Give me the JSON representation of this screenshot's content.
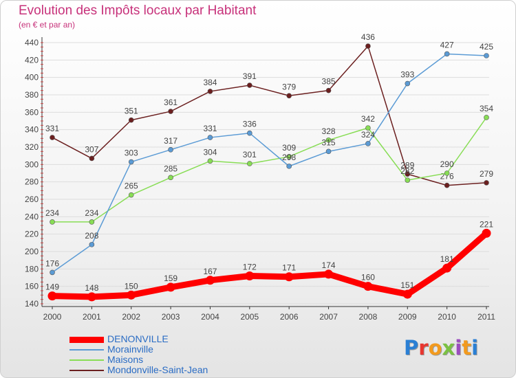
{
  "header": {
    "title": "Evolution des Impôts locaux par Habitant",
    "subtitle": "(en € et par an)"
  },
  "logo": {
    "text": "Proxiti",
    "colors": [
      "#2a7fd4",
      "#e8362f",
      "#f29a1e",
      "#7ac143",
      "#9b4dbf",
      "#f29a1e",
      "#2a7fd4"
    ]
  },
  "colors": {
    "title": "#c7317a",
    "axis": "#333333",
    "grid": "#dddddd",
    "tick_label": "#444444"
  },
  "chart_data": {
    "type": "line",
    "title": "Evolution des Impôts locaux par Habitant",
    "subtitle": "(en € et par an)",
    "x": [
      "2000",
      "2001",
      "2002",
      "2003",
      "2004",
      "2005",
      "2006",
      "2007",
      "2008",
      "2009",
      "2010",
      "2011"
    ],
    "ylim": [
      140,
      440
    ],
    "yticks": [
      140,
      160,
      180,
      200,
      220,
      240,
      260,
      280,
      300,
      320,
      340,
      360,
      380,
      400,
      420,
      440
    ],
    "grid": true,
    "legend": "bottom-left",
    "series": [
      {
        "name": "DENONVILLE",
        "color": "#ff0000",
        "values": [
          149,
          148,
          150,
          159,
          167,
          172,
          171,
          174,
          160,
          151,
          181,
          221
        ]
      },
      {
        "name": "Morainville",
        "color": "#5b9bd5",
        "values": [
          176,
          208,
          303,
          317,
          331,
          336,
          298,
          315,
          324,
          393,
          427,
          425
        ]
      },
      {
        "name": "Maisons",
        "color": "#88dd55",
        "values": [
          234,
          234,
          265,
          285,
          304,
          301,
          309,
          328,
          342,
          282,
          290,
          354
        ]
      },
      {
        "name": "Mondonville-Saint-Jean",
        "color": "#6b1f1f",
        "values": [
          331,
          307,
          351,
          361,
          384,
          391,
          379,
          385,
          436,
          289,
          276,
          279
        ]
      }
    ]
  }
}
